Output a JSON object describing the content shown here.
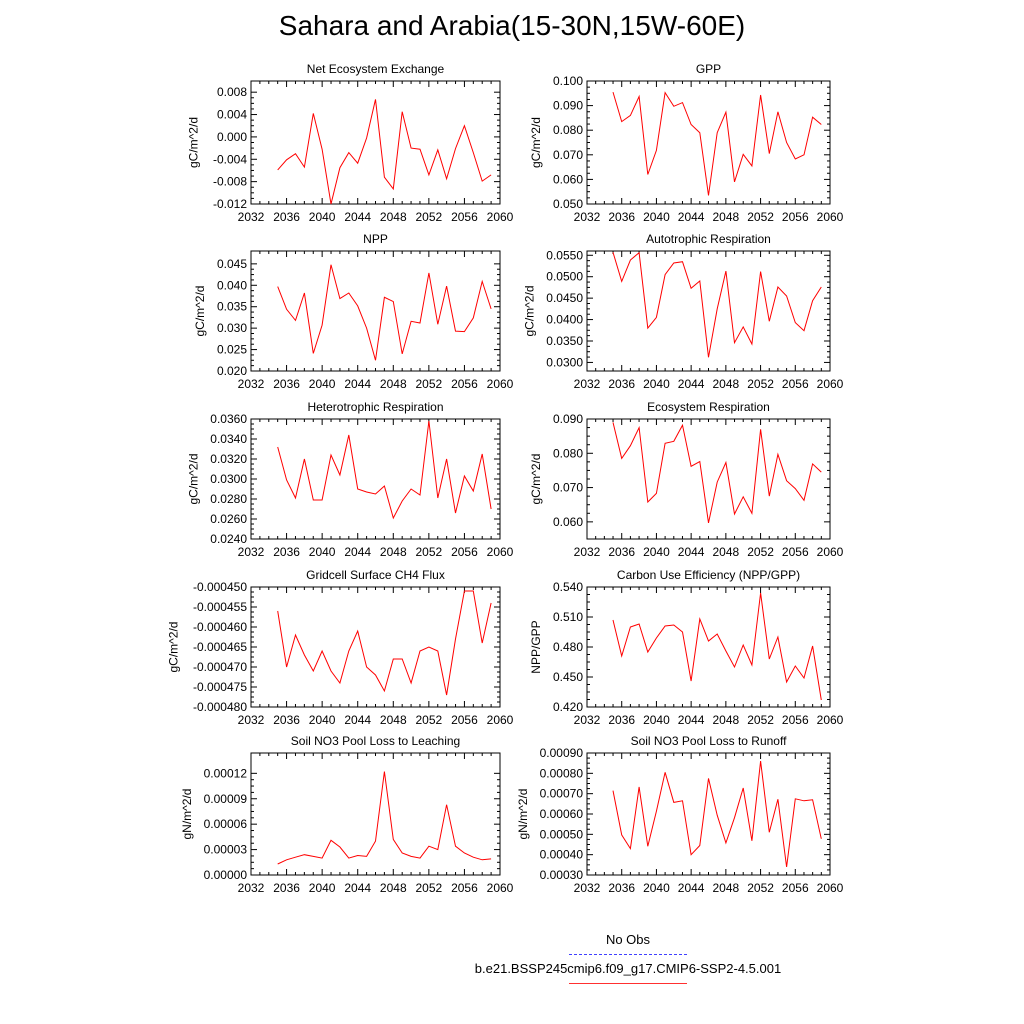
{
  "title": "Sahara and Arabia(15-30N,15W-60E)",
  "legend": {
    "obs_label": "No Obs",
    "case_label": "b.e21.BSSP245cmip6.f09_g17.CMIP6-SSP2-4.5.001",
    "obs_color": "#4040ff",
    "case_color": "#ff0000"
  },
  "chart_data": [
    {
      "type": "line",
      "title": "Net Ecosystem Exchange",
      "ylabel": "gC/m^2/d",
      "x": [
        2035,
        2036,
        2037,
        2038,
        2039,
        2040,
        2041,
        2042,
        2043,
        2044,
        2045,
        2046,
        2047,
        2048,
        2049,
        2050,
        2051,
        2052,
        2053,
        2054,
        2055,
        2056,
        2057,
        2058,
        2059
      ],
      "values": [
        -0.0059,
        -0.0041,
        -0.003,
        -0.0054,
        0.0042,
        -0.0022,
        -0.0121,
        -0.0055,
        -0.0028,
        -0.0047,
        -0.0002,
        0.0067,
        -0.0072,
        -0.0093,
        0.0045,
        -0.002,
        -0.0022,
        -0.0068,
        -0.0023,
        -0.0075,
        -0.0021,
        0.002,
        -0.0028,
        -0.0079,
        -0.0068
      ],
      "xlim": [
        2032,
        2060
      ],
      "ylim": [
        -0.012,
        0.01
      ],
      "xticks": [
        "2032",
        "2036",
        "2040",
        "2044",
        "2048",
        "2052",
        "2056",
        "2060"
      ],
      "yticks": [
        "-0.012",
        "-0.008",
        "-0.004",
        "0.000",
        "0.004",
        "0.008"
      ],
      "ytick_values": [
        -0.012,
        -0.008,
        -0.004,
        0.0,
        0.004,
        0.008
      ]
    },
    {
      "type": "line",
      "title": "GPP",
      "ylabel": "gC/m^2/d",
      "x": [
        2035,
        2036,
        2037,
        2038,
        2039,
        2040,
        2041,
        2042,
        2043,
        2044,
        2045,
        2046,
        2047,
        2048,
        2049,
        2050,
        2051,
        2052,
        2053,
        2054,
        2055,
        2056,
        2057,
        2058,
        2059
      ],
      "values": [
        0.0955,
        0.0835,
        0.086,
        0.0937,
        0.062,
        0.0718,
        0.0953,
        0.0897,
        0.0912,
        0.0823,
        0.079,
        0.0535,
        0.079,
        0.0873,
        0.059,
        0.0702,
        0.0655,
        0.0943,
        0.0705,
        0.0875,
        0.075,
        0.0683,
        0.07,
        0.0853,
        0.0823
      ],
      "xlim": [
        2032,
        2060
      ],
      "ylim": [
        0.05,
        0.1
      ],
      "xticks": [
        "2032",
        "2036",
        "2040",
        "2044",
        "2048",
        "2052",
        "2056",
        "2060"
      ],
      "yticks": [
        "0.050",
        "0.060",
        "0.070",
        "0.080",
        "0.090",
        "0.100"
      ],
      "ytick_values": [
        0.05,
        0.06,
        0.07,
        0.08,
        0.09,
        0.1
      ]
    },
    {
      "type": "line",
      "title": "NPP",
      "ylabel": "gC/m^2/d",
      "x": [
        2035,
        2036,
        2037,
        2038,
        2039,
        2040,
        2041,
        2042,
        2043,
        2044,
        2045,
        2046,
        2047,
        2048,
        2049,
        2050,
        2051,
        2052,
        2053,
        2054,
        2055,
        2056,
        2057,
        2058,
        2059
      ],
      "values": [
        0.0397,
        0.0344,
        0.0318,
        0.0382,
        0.0241,
        0.0307,
        0.0448,
        0.0369,
        0.0382,
        0.0352,
        0.03,
        0.0225,
        0.0372,
        0.0362,
        0.024,
        0.0316,
        0.0312,
        0.0429,
        0.0309,
        0.0398,
        0.0293,
        0.0292,
        0.0324,
        0.0409,
        0.0345
      ],
      "xlim": [
        2032,
        2060
      ],
      "ylim": [
        0.02,
        0.048
      ],
      "xticks": [
        "2032",
        "2036",
        "2040",
        "2044",
        "2048",
        "2052",
        "2056",
        "2060"
      ],
      "yticks": [
        "0.020",
        "0.025",
        "0.030",
        "0.035",
        "0.040",
        "0.045"
      ],
      "ytick_values": [
        0.02,
        0.025,
        0.03,
        0.035,
        0.04,
        0.045
      ]
    },
    {
      "type": "line",
      "title": "Autotrophic Respiration",
      "ylabel": "gC/m^2/d",
      "x": [
        2035,
        2036,
        2037,
        2038,
        2039,
        2040,
        2041,
        2042,
        2043,
        2044,
        2045,
        2046,
        2047,
        2048,
        2049,
        2050,
        2051,
        2052,
        2053,
        2054,
        2055,
        2056,
        2057,
        2058,
        2059
      ],
      "values": [
        0.0557,
        0.0489,
        0.0539,
        0.0556,
        0.038,
        0.0405,
        0.0505,
        0.0532,
        0.0535,
        0.0473,
        0.049,
        0.0312,
        0.0425,
        0.0513,
        0.0346,
        0.0383,
        0.0343,
        0.0512,
        0.0396,
        0.0476,
        0.0455,
        0.0393,
        0.0374,
        0.0444,
        0.0476
      ],
      "xlim": [
        2032,
        2060
      ],
      "ylim": [
        0.028,
        0.056
      ],
      "xticks": [
        "2032",
        "2036",
        "2040",
        "2044",
        "2048",
        "2052",
        "2056",
        "2060"
      ],
      "yticks": [
        "0.0300",
        "0.0350",
        "0.0400",
        "0.0450",
        "0.0500",
        "0.0550"
      ],
      "ytick_values": [
        0.03,
        0.035,
        0.04,
        0.045,
        0.05,
        0.055
      ]
    },
    {
      "type": "line",
      "title": "Heterotrophic Respiration",
      "ylabel": "gC/m^2/d",
      "x": [
        2035,
        2036,
        2037,
        2038,
        2039,
        2040,
        2041,
        2042,
        2043,
        2044,
        2045,
        2046,
        2047,
        2048,
        2049,
        2050,
        2051,
        2052,
        2053,
        2054,
        2055,
        2056,
        2057,
        2058,
        2059
      ],
      "values": [
        0.0332,
        0.0299,
        0.0281,
        0.032,
        0.0279,
        0.0279,
        0.0324,
        0.0304,
        0.0344,
        0.029,
        0.0287,
        0.0285,
        0.0293,
        0.0261,
        0.0278,
        0.029,
        0.0284,
        0.0358,
        0.0281,
        0.032,
        0.0266,
        0.0303,
        0.0288,
        0.0325,
        0.027
      ],
      "xlim": [
        2032,
        2060
      ],
      "ylim": [
        0.024,
        0.036
      ],
      "xticks": [
        "2032",
        "2036",
        "2040",
        "2044",
        "2048",
        "2052",
        "2056",
        "2060"
      ],
      "yticks": [
        "0.0240",
        "0.0260",
        "0.0280",
        "0.0300",
        "0.0320",
        "0.0340",
        "0.0360"
      ],
      "ytick_values": [
        0.024,
        0.026,
        0.028,
        0.03,
        0.032,
        0.034,
        0.036
      ]
    },
    {
      "type": "line",
      "title": "Ecosystem Respiration",
      "ylabel": "gC/m^2/d",
      "x": [
        2035,
        2036,
        2037,
        2038,
        2039,
        2040,
        2041,
        2042,
        2043,
        2044,
        2045,
        2046,
        2047,
        2048,
        2049,
        2050,
        2051,
        2052,
        2053,
        2054,
        2055,
        2056,
        2057,
        2058,
        2059
      ],
      "values": [
        0.089,
        0.0785,
        0.0822,
        0.0875,
        0.0658,
        0.0683,
        0.0829,
        0.0835,
        0.0882,
        0.0762,
        0.0776,
        0.0597,
        0.0716,
        0.0773,
        0.0623,
        0.0673,
        0.0625,
        0.087,
        0.0675,
        0.0797,
        0.072,
        0.0697,
        0.0663,
        0.0769,
        0.0745
      ],
      "xlim": [
        2032,
        2060
      ],
      "ylim": [
        0.055,
        0.09
      ],
      "xticks": [
        "2032",
        "2036",
        "2040",
        "2044",
        "2048",
        "2052",
        "2056",
        "2060"
      ],
      "yticks": [
        "0.060",
        "0.070",
        "0.080",
        "0.090"
      ],
      "ytick_values": [
        0.06,
        0.07,
        0.08,
        0.09
      ]
    },
    {
      "type": "line",
      "title": "Gridcell Surface CH4 Flux",
      "ylabel": "gC/m^2/d",
      "x": [
        2035,
        2036,
        2037,
        2038,
        2039,
        2040,
        2041,
        2042,
        2043,
        2044,
        2045,
        2046,
        2047,
        2048,
        2049,
        2050,
        2051,
        2052,
        2053,
        2054,
        2055,
        2056,
        2057,
        2058,
        2059
      ],
      "values": [
        -0.000456,
        -0.00047,
        -0.000462,
        -0.000467,
        -0.000471,
        -0.000466,
        -0.000471,
        -0.000474,
        -0.000466,
        -0.000461,
        -0.00047,
        -0.000472,
        -0.000476,
        -0.000468,
        -0.000468,
        -0.000474,
        -0.000466,
        -0.000465,
        -0.000466,
        -0.000477,
        -0.000463,
        -0.000451,
        -0.000451,
        -0.000464,
        -0.000454
      ],
      "xlim": [
        2032,
        2060
      ],
      "ylim": [
        -0.00048,
        -0.00045
      ],
      "xticks": [
        "2032",
        "2036",
        "2040",
        "2044",
        "2048",
        "2052",
        "2056",
        "2060"
      ],
      "yticks": [
        "-0.000480",
        "-0.000475",
        "-0.000470",
        "-0.000465",
        "-0.000460",
        "-0.000455",
        "-0.000450"
      ],
      "ytick_values": [
        -0.00048,
        -0.000475,
        -0.00047,
        -0.000465,
        -0.00046,
        -0.000455,
        -0.00045
      ]
    },
    {
      "type": "line",
      "title": "Carbon Use Efficiency (NPP/GPP)",
      "ylabel": "NPP/GPP",
      "x": [
        2035,
        2036,
        2037,
        2038,
        2039,
        2040,
        2041,
        2042,
        2043,
        2044,
        2045,
        2046,
        2047,
        2048,
        2049,
        2050,
        2051,
        2052,
        2053,
        2054,
        2055,
        2056,
        2057,
        2058,
        2059
      ],
      "values": [
        0.507,
        0.471,
        0.5,
        0.503,
        0.475,
        0.489,
        0.501,
        0.502,
        0.495,
        0.446,
        0.508,
        0.486,
        0.493,
        0.476,
        0.46,
        0.482,
        0.462,
        0.534,
        0.468,
        0.49,
        0.445,
        0.461,
        0.449,
        0.481,
        0.427
      ],
      "xlim": [
        2032,
        2060
      ],
      "ylim": [
        0.42,
        0.54
      ],
      "xticks": [
        "2032",
        "2036",
        "2040",
        "2044",
        "2048",
        "2052",
        "2056",
        "2060"
      ],
      "yticks": [
        "0.420",
        "0.450",
        "0.480",
        "0.510",
        "0.540"
      ],
      "ytick_values": [
        0.42,
        0.45,
        0.48,
        0.51,
        0.54
      ]
    },
    {
      "type": "line",
      "title": "Soil NO3 Pool Loss to Leaching",
      "ylabel": "gN/m^2/d",
      "x": [
        2035,
        2036,
        2037,
        2038,
        2039,
        2040,
        2041,
        2042,
        2043,
        2044,
        2045,
        2046,
        2047,
        2048,
        2049,
        2050,
        2051,
        2052,
        2053,
        2054,
        2055,
        2056,
        2057,
        2058,
        2059
      ],
      "values": [
        1.3e-05,
        1.8e-05,
        2.1e-05,
        2.4e-05,
        2.2e-05,
        2e-05,
        4.1e-05,
        3.3e-05,
        2e-05,
        2.3e-05,
        2.2e-05,
        4e-05,
        0.000122,
        4.2e-05,
        2.6e-05,
        2.2e-05,
        2e-05,
        3.4e-05,
        3e-05,
        8.3e-05,
        3.4e-05,
        2.6e-05,
        2.1e-05,
        1.8e-05,
        1.9e-05
      ],
      "xlim": [
        2032,
        2060
      ],
      "ylim": [
        0.0,
        0.000144
      ],
      "xticks": [
        "2032",
        "2036",
        "2040",
        "2044",
        "2048",
        "2052",
        "2056",
        "2060"
      ],
      "yticks": [
        "0.00000",
        "0.00003",
        "0.00006",
        "0.00009",
        "0.00012"
      ],
      "ytick_values": [
        0.0,
        3e-05,
        6e-05,
        9e-05,
        0.00012
      ]
    },
    {
      "type": "line",
      "title": "Soil NO3 Pool Loss to Runoff",
      "ylabel": "gN/m^2/d",
      "x": [
        2035,
        2036,
        2037,
        2038,
        2039,
        2040,
        2041,
        2042,
        2043,
        2044,
        2045,
        2046,
        2047,
        2048,
        2049,
        2050,
        2051,
        2052,
        2053,
        2054,
        2055,
        2056,
        2057,
        2058,
        2059
      ],
      "values": [
        0.000715,
        0.000497,
        0.00043,
        0.000733,
        0.000441,
        0.000614,
        0.000805,
        0.000657,
        0.000665,
        0.0004,
        0.000445,
        0.000775,
        0.000594,
        0.000458,
        0.000582,
        0.000728,
        0.000468,
        0.00086,
        0.00051,
        0.000673,
        0.00034,
        0.000675,
        0.000665,
        0.00067,
        0.000478
      ],
      "xlim": [
        2032,
        2060
      ],
      "ylim": [
        0.0003,
        0.0009
      ],
      "xticks": [
        "2032",
        "2036",
        "2040",
        "2044",
        "2048",
        "2052",
        "2056",
        "2060"
      ],
      "yticks": [
        "0.00030",
        "0.00040",
        "0.00050",
        "0.00060",
        "0.00070",
        "0.00080",
        "0.00090"
      ],
      "ytick_values": [
        0.0003,
        0.0004,
        0.0005,
        0.0006,
        0.0007,
        0.0008,
        0.0009
      ]
    }
  ]
}
